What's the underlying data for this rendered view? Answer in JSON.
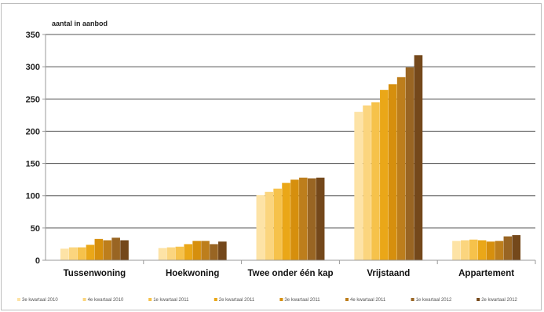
{
  "chart_data": {
    "type": "bar",
    "ylabel": "aantal in aanbod",
    "ylim": [
      0,
      350
    ],
    "yticks": [
      0,
      50,
      100,
      150,
      200,
      250,
      300,
      350
    ],
    "grid": true,
    "legend_position": "bottom",
    "categories": [
      "Tussenwoning",
      "Hoekwoning",
      "Twee onder één kap",
      "Vrijstaand",
      "Appartement"
    ],
    "series": [
      {
        "name": "3e kwartaal 2010",
        "color": "#fde3a6",
        "values": [
          18,
          19,
          101,
          230,
          30
        ]
      },
      {
        "name": "4e kwartaal 2010",
        "color": "#fbd57e",
        "values": [
          20,
          20,
          106,
          240,
          31
        ]
      },
      {
        "name": "1e kwartaal 2011",
        "color": "#f6c24b",
        "values": [
          20,
          21,
          111,
          245,
          32
        ]
      },
      {
        "name": "2e kwartaal 2011",
        "color": "#eaa718",
        "values": [
          24,
          25,
          120,
          264,
          31
        ]
      },
      {
        "name": "3e kwartaal 2011",
        "color": "#d68f0d",
        "values": [
          33,
          30,
          125,
          273,
          29
        ]
      },
      {
        "name": "4e kwartaal 2011",
        "color": "#bd7e1c",
        "values": [
          31,
          30,
          128,
          284,
          30
        ]
      },
      {
        "name": "1e kwartaal 2012",
        "color": "#996523",
        "values": [
          35,
          25,
          127,
          299,
          37
        ]
      },
      {
        "name": "2e kwartaal 2012",
        "color": "#74481b",
        "values": [
          31,
          29,
          128,
          318,
          39
        ]
      }
    ]
  }
}
